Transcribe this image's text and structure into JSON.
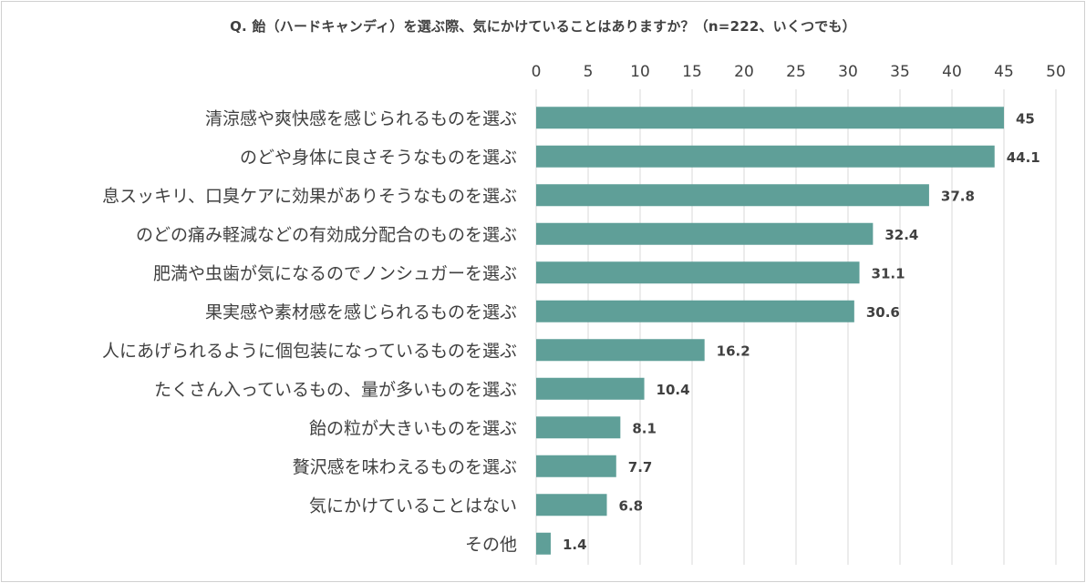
{
  "chart_data": {
    "type": "bar",
    "orientation": "horizontal",
    "title": "Q.  飴（ハードキャンディ）を選ぶ際、気にかけていることはありますか？（n=222、いくつでも）",
    "categories": [
      "清涼感や爽快感を感じられるものを選ぶ",
      "のどや身体に良さそうなものを選ぶ",
      "息スッキリ、口臭ケアに効果がありそうなものを選ぶ",
      "のどの痛み軽減などの有効成分配合のものを選ぶ",
      "肥満や虫歯が気になるのでノンシュガーを選ぶ",
      "果実感や素材感を感じられるものを選ぶ",
      "人にあげられるように個包装になっているものを選ぶ",
      "たくさん入っているもの、量が多いものを選ぶ",
      "飴の粒が大きいものを選ぶ",
      "贅沢感を味わえるものを選ぶ",
      "気にかけていることはない",
      "その他"
    ],
    "values": [
      45,
      44.1,
      37.8,
      32.4,
      31.1,
      30.6,
      16.2,
      10.4,
      8.1,
      7.7,
      6.8,
      1.4
    ],
    "value_labels": [
      "45",
      "44.1",
      "37.8",
      "32.4",
      "31.1",
      "30.6",
      "16.2",
      "10.4",
      "8.1",
      "7.7",
      "6.8",
      "1.4"
    ],
    "xlim": [
      0,
      50
    ],
    "xticks": [
      0,
      5,
      10,
      15,
      20,
      25,
      30,
      35,
      40,
      45,
      50
    ],
    "axis_position": "top",
    "grid": true,
    "legend": "none",
    "bar_color": "#5f9f98",
    "xlabel": "",
    "ylabel": ""
  }
}
